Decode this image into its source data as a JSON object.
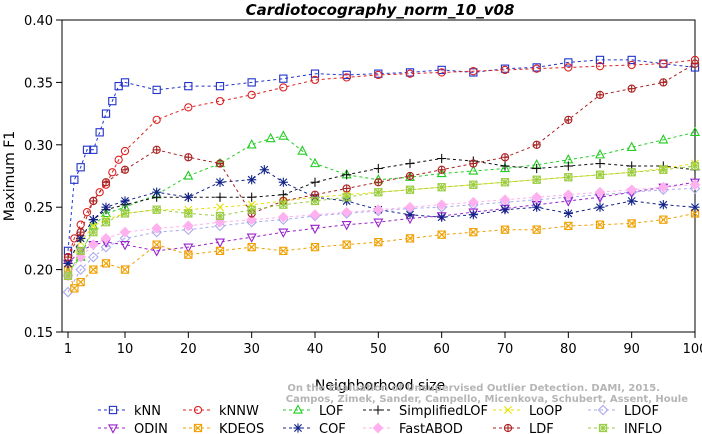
{
  "chart_data": {
    "type": "line",
    "title": "Cardiotocography_norm_10_v08",
    "xlabel": "Neighborhood size",
    "ylabel": "Maximum F1",
    "xlim": [
      1,
      100
    ],
    "ylim": [
      0.15,
      0.4
    ],
    "x_ticks": [
      1,
      10,
      20,
      30,
      40,
      50,
      60,
      70,
      80,
      90,
      100
    ],
    "y_ticks": [
      0.15,
      0.2,
      0.25,
      0.3,
      0.35,
      0.4
    ],
    "x_tick_labels": [
      "1",
      "10",
      "20",
      "30",
      "40",
      "50",
      "60",
      "70",
      "80",
      "90",
      "100"
    ],
    "y_tick_labels": [
      "0.15",
      "0.20",
      "0.25",
      "0.30",
      "0.35",
      "0.40"
    ],
    "grid": false,
    "legend_position": "bottom",
    "credit": [
      "Campos, Zimek, Sander, Campello, Micenkova, Schubert, Assent, Houle",
      "On the Evaluation of Unsupervised Outlier Detection. DAMI, 2015."
    ],
    "series": [
      {
        "name": "kNN",
        "color": "#2233cc",
        "marker": "square",
        "x": [
          1,
          2,
          3,
          4,
          5,
          6,
          7,
          8,
          9,
          10,
          15,
          20,
          25,
          30,
          35,
          40,
          45,
          50,
          55,
          60,
          65,
          70,
          75,
          80,
          85,
          90,
          95,
          100
        ],
        "y": [
          0.215,
          0.272,
          0.282,
          0.296,
          0.296,
          0.31,
          0.325,
          0.335,
          0.347,
          0.35,
          0.344,
          0.347,
          0.347,
          0.35,
          0.353,
          0.357,
          0.356,
          0.357,
          0.358,
          0.36,
          0.358,
          0.361,
          0.362,
          0.366,
          0.368,
          0.368,
          0.365,
          0.362
        ]
      },
      {
        "name": "kNNW",
        "color": "#dd2222",
        "marker": "circle",
        "x": [
          1,
          2,
          3,
          4,
          5,
          6,
          7,
          8,
          9,
          10,
          15,
          20,
          25,
          30,
          35,
          40,
          45,
          50,
          55,
          60,
          65,
          70,
          75,
          80,
          85,
          90,
          95,
          100
        ],
        "y": [
          0.21,
          0.225,
          0.236,
          0.246,
          0.255,
          0.262,
          0.268,
          0.278,
          0.288,
          0.295,
          0.32,
          0.33,
          0.335,
          0.34,
          0.346,
          0.352,
          0.354,
          0.356,
          0.357,
          0.358,
          0.359,
          0.36,
          0.361,
          0.362,
          0.363,
          0.364,
          0.365,
          0.368
        ]
      },
      {
        "name": "LOF",
        "color": "#22cc22",
        "marker": "triangle-up",
        "x": [
          1,
          3,
          5,
          7,
          10,
          15,
          20,
          25,
          30,
          33,
          35,
          38,
          40,
          45,
          50,
          55,
          60,
          65,
          70,
          75,
          80,
          85,
          90,
          95,
          100
        ],
        "y": [
          0.198,
          0.21,
          0.235,
          0.245,
          0.25,
          0.26,
          0.275,
          0.285,
          0.3,
          0.305,
          0.307,
          0.295,
          0.285,
          0.276,
          0.272,
          0.274,
          0.277,
          0.279,
          0.281,
          0.284,
          0.288,
          0.292,
          0.298,
          0.304,
          0.31
        ]
      },
      {
        "name": "SimplifiedLOF",
        "color": "#111111",
        "marker": "plus",
        "x": [
          1,
          3,
          5,
          7,
          10,
          15,
          20,
          25,
          30,
          35,
          40,
          45,
          50,
          55,
          60,
          65,
          70,
          75,
          80,
          85,
          90,
          95,
          100
        ],
        "y": [
          0.205,
          0.225,
          0.24,
          0.248,
          0.252,
          0.258,
          0.258,
          0.258,
          0.258,
          0.26,
          0.27,
          0.276,
          0.281,
          0.285,
          0.289,
          0.287,
          0.283,
          0.281,
          0.283,
          0.285,
          0.283,
          0.283,
          0.28
        ]
      },
      {
        "name": "LoOP",
        "color": "#e8e000",
        "marker": "cross",
        "x": [
          1,
          3,
          5,
          7,
          10,
          15,
          20,
          25,
          30,
          35,
          40,
          45,
          50,
          55,
          60,
          65,
          70,
          75,
          80,
          85,
          90,
          95,
          100
        ],
        "y": [
          0.205,
          0.222,
          0.235,
          0.24,
          0.245,
          0.248,
          0.248,
          0.25,
          0.252,
          0.255,
          0.258,
          0.26,
          0.262,
          0.264,
          0.266,
          0.268,
          0.27,
          0.272,
          0.274,
          0.276,
          0.278,
          0.281,
          0.285
        ]
      },
      {
        "name": "LDOF",
        "color": "#aaaaee",
        "marker": "diamond",
        "x": [
          1,
          3,
          5,
          7,
          10,
          15,
          20,
          25,
          30,
          35,
          40,
          45,
          50,
          55,
          60,
          65,
          70,
          75,
          80,
          85,
          90,
          95,
          100
        ],
        "y": [
          0.182,
          0.2,
          0.21,
          0.218,
          0.225,
          0.23,
          0.232,
          0.235,
          0.238,
          0.24,
          0.243,
          0.245,
          0.247,
          0.249,
          0.25,
          0.252,
          0.254,
          0.256,
          0.258,
          0.26,
          0.262,
          0.264,
          0.265
        ]
      },
      {
        "name": "ODIN",
        "color": "#9922cc",
        "marker": "triangle-down",
        "x": [
          1,
          3,
          5,
          7,
          10,
          15,
          20,
          25,
          30,
          35,
          40,
          45,
          50,
          55,
          60,
          65,
          70,
          75,
          80,
          85,
          90,
          95,
          100
        ],
        "y": [
          0.205,
          0.215,
          0.22,
          0.222,
          0.22,
          0.215,
          0.218,
          0.222,
          0.226,
          0.23,
          0.233,
          0.236,
          0.238,
          0.241,
          0.243,
          0.246,
          0.249,
          0.252,
          0.255,
          0.258,
          0.262,
          0.266,
          0.27
        ]
      },
      {
        "name": "KDEOS",
        "color": "#f0a000",
        "marker": "boxcross",
        "x": [
          1,
          2,
          3,
          5,
          7,
          10,
          15,
          20,
          25,
          30,
          35,
          40,
          45,
          50,
          55,
          60,
          65,
          70,
          75,
          80,
          85,
          90,
          95,
          100
        ],
        "y": [
          0.2,
          0.185,
          0.19,
          0.2,
          0.205,
          0.2,
          0.22,
          0.212,
          0.215,
          0.218,
          0.215,
          0.218,
          0.22,
          0.222,
          0.225,
          0.228,
          0.23,
          0.232,
          0.232,
          0.235,
          0.236,
          0.237,
          0.24,
          0.245
        ]
      },
      {
        "name": "COF",
        "color": "#112288",
        "marker": "star",
        "x": [
          1,
          3,
          5,
          7,
          10,
          15,
          20,
          25,
          30,
          32,
          35,
          40,
          45,
          50,
          55,
          60,
          65,
          70,
          75,
          80,
          85,
          90,
          95,
          100
        ],
        "y": [
          0.205,
          0.225,
          0.24,
          0.25,
          0.255,
          0.262,
          0.258,
          0.27,
          0.272,
          0.28,
          0.27,
          0.258,
          0.255,
          0.248,
          0.244,
          0.242,
          0.244,
          0.248,
          0.25,
          0.245,
          0.25,
          0.255,
          0.252,
          0.25
        ]
      },
      {
        "name": "FastABOD",
        "color": "#ffb0ee",
        "marker": "diamond-filled",
        "x": [
          1,
          3,
          5,
          7,
          10,
          15,
          20,
          25,
          30,
          35,
          40,
          45,
          50,
          55,
          60,
          65,
          70,
          75,
          80,
          85,
          90,
          95,
          100
        ],
        "y": [
          0.195,
          0.21,
          0.22,
          0.225,
          0.23,
          0.233,
          0.235,
          0.238,
          0.24,
          0.242,
          0.244,
          0.246,
          0.248,
          0.25,
          0.252,
          0.254,
          0.256,
          0.258,
          0.26,
          0.262,
          0.264,
          0.266,
          0.268
        ]
      },
      {
        "name": "LDF",
        "color": "#aa2222",
        "marker": "circle-plus",
        "x": [
          1,
          3,
          5,
          7,
          10,
          15,
          20,
          25,
          30,
          35,
          40,
          45,
          50,
          55,
          60,
          65,
          70,
          75,
          80,
          85,
          90,
          95,
          100
        ],
        "y": [
          0.21,
          0.23,
          0.255,
          0.27,
          0.28,
          0.296,
          0.29,
          0.285,
          0.245,
          0.255,
          0.26,
          0.265,
          0.27,
          0.275,
          0.28,
          0.285,
          0.29,
          0.3,
          0.32,
          0.34,
          0.345,
          0.35,
          0.365
        ]
      },
      {
        "name": "INFLO",
        "color": "#99cc44",
        "marker": "boxstar",
        "x": [
          1,
          3,
          5,
          7,
          10,
          15,
          20,
          25,
          30,
          35,
          40,
          45,
          50,
          55,
          60,
          65,
          70,
          75,
          80,
          85,
          90,
          95,
          100
        ],
        "y": [
          0.195,
          0.215,
          0.23,
          0.238,
          0.245,
          0.248,
          0.245,
          0.243,
          0.248,
          0.252,
          0.255,
          0.258,
          0.262,
          0.264,
          0.266,
          0.268,
          0.27,
          0.272,
          0.274,
          0.276,
          0.278,
          0.28,
          0.283
        ]
      }
    ]
  }
}
